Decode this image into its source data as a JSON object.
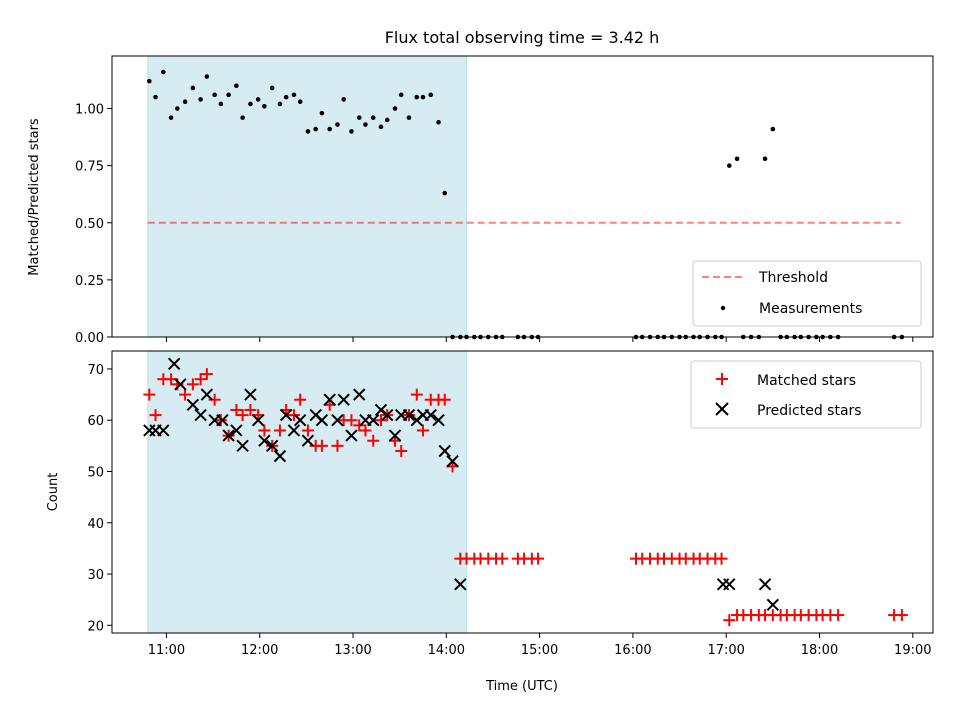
{
  "title": "Flux total observing time = 3.42 h",
  "colors": {
    "shade": "#add8e6",
    "threshold": "#ff0000",
    "measurement": "#000000",
    "matched": "#ff0000",
    "predicted": "#000000"
  },
  "chart_data": [
    {
      "type": "scatter",
      "ylabel": "Matched/Predicted stars",
      "ylim": [
        0,
        1.23
      ],
      "yticks": [
        0.0,
        0.25,
        0.5,
        0.75,
        1.0
      ],
      "ytick_labels": [
        "0.00",
        "0.25",
        "0.50",
        "0.75",
        "1.00"
      ],
      "legend_placement": "lower right",
      "shaded_span": [
        "10:48",
        "14:13"
      ],
      "threshold": {
        "name": "Threshold",
        "value": 0.5,
        "x_range": [
          "10:48",
          "18:52"
        ]
      },
      "measurements": {
        "name": "Measurements",
        "x": [
          "10:49",
          "10:53",
          "10:58",
          "11:03",
          "11:07",
          "11:12",
          "11:17",
          "11:22",
          "11:26",
          "11:31",
          "11:35",
          "11:40",
          "11:45",
          "11:49",
          "11:54",
          "11:59",
          "12:03",
          "12:08",
          "12:13",
          "12:17",
          "12:22",
          "12:26",
          "12:31",
          "12:36",
          "12:40",
          "12:45",
          "12:50",
          "12:54",
          "12:59",
          "13:04",
          "13:08",
          "13:13",
          "13:18",
          "13:22",
          "13:27",
          "13:31",
          "13:36",
          "13:41",
          "13:45",
          "13:50",
          "13:55",
          "13:59",
          "14:04",
          "14:09",
          "14:13",
          "14:18",
          "14:22",
          "14:27",
          "14:32",
          "14:36",
          "14:46",
          "14:50",
          "14:55",
          "14:59",
          "16:02",
          "16:06",
          "16:11",
          "16:16",
          "16:20",
          "16:25",
          "16:30",
          "16:34",
          "16:39",
          "16:43",
          "16:48",
          "16:53",
          "16:57",
          "17:02",
          "17:07",
          "17:11",
          "17:16",
          "17:21",
          "17:25",
          "17:30",
          "17:35",
          "17:39",
          "17:44",
          "17:48",
          "17:53",
          "17:58",
          "18:02",
          "18:07",
          "18:12",
          "18:48",
          "18:53"
        ],
        "y": [
          1.12,
          1.05,
          1.16,
          0.96,
          1.0,
          1.03,
          1.09,
          1.04,
          1.14,
          1.06,
          1.02,
          1.06,
          1.1,
          0.96,
          1.02,
          1.04,
          1.01,
          1.09,
          1.02,
          1.05,
          1.06,
          1.03,
          0.9,
          0.91,
          0.98,
          0.91,
          0.93,
          1.04,
          0.9,
          0.96,
          0.93,
          0.96,
          0.92,
          0.95,
          1.0,
          1.06,
          0.96,
          1.05,
          1.05,
          1.06,
          0.94,
          0.63,
          0.0,
          0.0,
          0.0,
          0.0,
          0.0,
          0.0,
          0.0,
          0.0,
          0.0,
          0.0,
          0.0,
          0.0,
          0.0,
          0.0,
          0.0,
          0.0,
          0.0,
          0.0,
          0.0,
          0.0,
          0.0,
          0.0,
          0.0,
          0.0,
          0.0,
          0.75,
          0.78,
          0.0,
          0.0,
          0.0,
          0.78,
          0.91,
          0.0,
          0.0,
          0.0,
          0.0,
          0.0,
          0.0,
          0.0,
          0.0,
          0.0,
          0.0,
          0.0
        ]
      }
    },
    {
      "type": "scatter",
      "xlabel": "Time (UTC)",
      "ylabel": "Count",
      "ylim": [
        18.5,
        73.5
      ],
      "yticks": [
        20,
        30,
        40,
        50,
        60,
        70
      ],
      "ytick_labels": [
        "20",
        "30",
        "40",
        "50",
        "60",
        "70"
      ],
      "xlim": [
        "10:25",
        "19:13"
      ],
      "xticks": [
        "11:00",
        "12:00",
        "13:00",
        "14:00",
        "15:00",
        "16:00",
        "17:00",
        "18:00",
        "19:00"
      ],
      "xtick_labels": [
        "11:00",
        "12:00",
        "13:00",
        "14:00",
        "15:00",
        "16:00",
        "17:00",
        "18:00",
        "19:00"
      ],
      "legend_placement": "upper right",
      "shaded_span": [
        "10:48",
        "14:13"
      ],
      "series": [
        {
          "name": "Matched stars",
          "marker": "+",
          "x": [
            "10:49",
            "10:53",
            "10:58",
            "11:03",
            "11:07",
            "11:12",
            "11:17",
            "11:22",
            "11:26",
            "11:31",
            "11:35",
            "11:40",
            "11:45",
            "11:49",
            "11:54",
            "11:59",
            "12:03",
            "12:08",
            "12:13",
            "12:17",
            "12:22",
            "12:26",
            "12:31",
            "12:36",
            "12:40",
            "12:45",
            "12:50",
            "12:54",
            "12:59",
            "13:04",
            "13:08",
            "13:13",
            "13:18",
            "13:22",
            "13:27",
            "13:31",
            "13:36",
            "13:41",
            "13:45",
            "13:50",
            "13:55",
            "13:59",
            "14:04",
            "14:09",
            "14:13",
            "14:18",
            "14:22",
            "14:27",
            "14:32",
            "14:36",
            "14:46",
            "14:50",
            "14:55",
            "14:59",
            "16:02",
            "16:06",
            "16:11",
            "16:16",
            "16:20",
            "16:25",
            "16:30",
            "16:34",
            "16:39",
            "16:43",
            "16:48",
            "16:53",
            "16:57",
            "17:02",
            "17:07",
            "17:11",
            "17:16",
            "17:21",
            "17:25",
            "17:30",
            "17:35",
            "17:39",
            "17:44",
            "17:48",
            "17:53",
            "17:58",
            "18:02",
            "18:07",
            "18:12",
            "18:48",
            "18:53"
          ],
          "y": [
            65,
            61,
            68,
            68,
            67,
            65,
            67,
            68,
            69,
            64,
            60,
            57,
            62,
            61,
            62,
            61,
            58,
            55,
            58,
            62,
            61,
            64,
            58,
            55,
            55,
            63,
            55,
            60,
            60,
            59,
            58,
            56,
            60,
            61,
            56,
            54,
            61,
            65,
            58,
            64,
            64,
            64,
            51,
            33,
            33,
            33,
            33,
            33,
            33,
            33,
            33,
            33,
            33,
            33,
            33,
            33,
            33,
            33,
            33,
            33,
            33,
            33,
            33,
            33,
            33,
            33,
            33,
            21,
            22,
            22,
            22,
            22,
            22,
            22,
            22,
            22,
            22,
            22,
            22,
            22,
            22,
            22,
            22,
            22,
            22
          ]
        },
        {
          "name": "Predicted stars",
          "marker": "x",
          "x": [
            "10:49",
            "10:53",
            "10:58",
            "11:05",
            "11:09",
            "11:17",
            "11:22",
            "11:26",
            "11:31",
            "11:36",
            "11:40",
            "11:45",
            "11:49",
            "11:54",
            "11:59",
            "12:03",
            "12:08",
            "12:13",
            "12:17",
            "12:22",
            "12:26",
            "12:31",
            "12:36",
            "12:40",
            "12:45",
            "12:50",
            "12:54",
            "12:59",
            "13:04",
            "13:08",
            "13:13",
            "13:18",
            "13:22",
            "13:27",
            "13:31",
            "13:36",
            "13:41",
            "13:45",
            "13:50",
            "13:55",
            "13:59",
            "14:04",
            "14:09",
            "16:58",
            "17:02",
            "17:25",
            "17:30"
          ],
          "y": [
            58,
            58,
            58,
            71,
            67,
            63,
            61,
            65,
            60,
            60,
            57,
            58,
            55,
            65,
            60,
            56,
            55,
            53,
            61,
            58,
            60,
            56,
            61,
            60,
            64,
            60,
            64,
            57,
            65,
            60,
            60,
            62,
            61,
            57,
            61,
            61,
            60,
            61,
            61,
            60,
            54,
            52,
            28,
            28,
            28,
            28,
            24
          ]
        }
      ]
    }
  ]
}
